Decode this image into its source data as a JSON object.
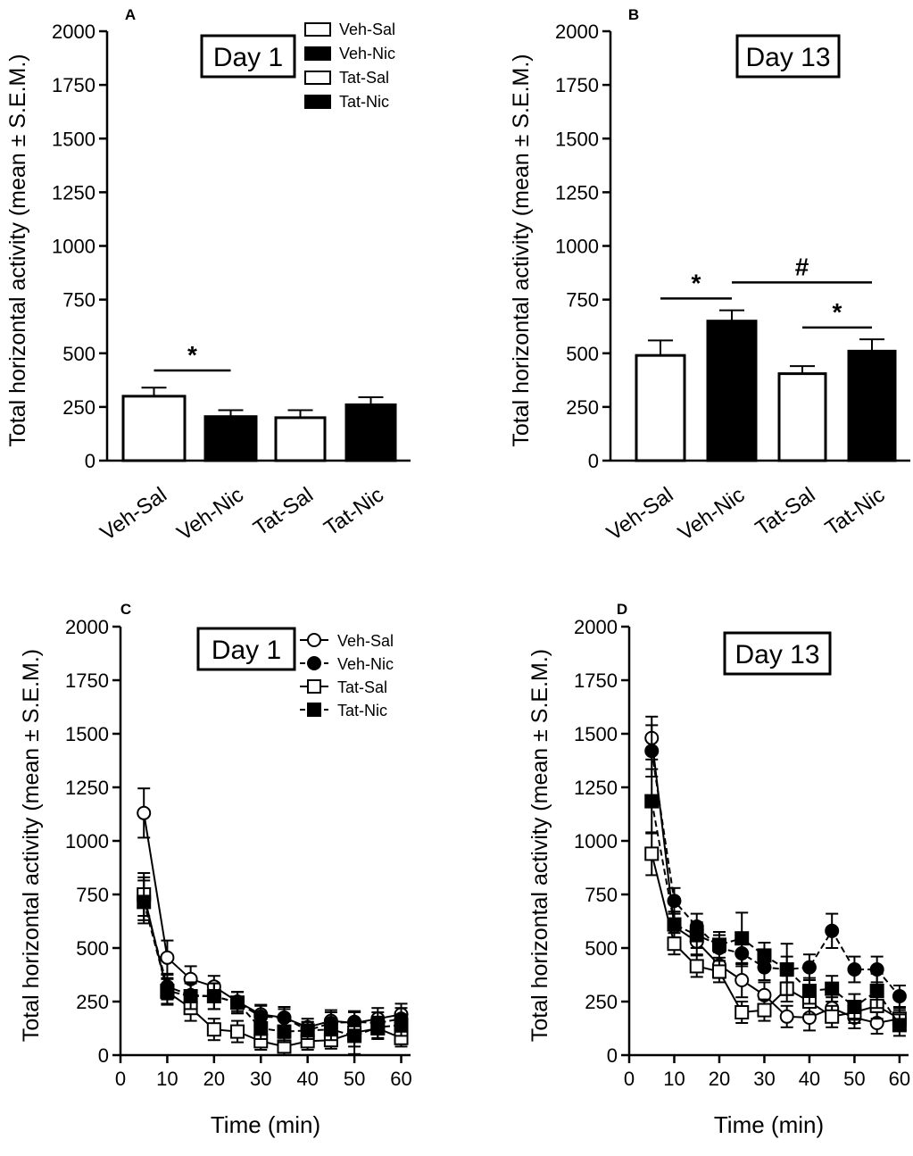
{
  "chart_data": [
    {
      "panel": "A",
      "type": "bar",
      "day_label": "Day 1",
      "ylabel": "Total horizontal activity (mean ± S.E.M.)",
      "ylim": [
        0,
        2000
      ],
      "yticks": [
        0,
        250,
        500,
        750,
        1000,
        1250,
        1500,
        1750,
        2000
      ],
      "categories": [
        "Veh-Sal",
        "Veh-Nic",
        "Tat-Sal",
        "Tat-Nic"
      ],
      "values": [
        300,
        205,
        200,
        260
      ],
      "errors": [
        40,
        30,
        35,
        35
      ],
      "fills": [
        "#ffffff",
        "#000000",
        "#ffffff",
        "#000000"
      ],
      "legend": [
        {
          "label": "Veh-Sal",
          "fill": "#ffffff"
        },
        {
          "label": "Veh-Nic",
          "fill": "#000000"
        },
        {
          "label": "Tat-Sal",
          "fill": "#ffffff"
        },
        {
          "label": "Tat-Nic",
          "fill": "#000000"
        }
      ],
      "significance": [
        {
          "symbol": "*",
          "from": "Veh-Sal",
          "to": "Veh-Nic",
          "level": 420
        }
      ]
    },
    {
      "panel": "B",
      "type": "bar",
      "day_label": "Day 13",
      "ylabel": "Total horizontal activity (mean ± S.E.M.)",
      "ylim": [
        0,
        2000
      ],
      "yticks": [
        0,
        250,
        500,
        750,
        1000,
        1250,
        1500,
        1750,
        2000
      ],
      "categories": [
        "Veh-Sal",
        "Veh-Nic",
        "Tat-Sal",
        "Tat-Nic"
      ],
      "values": [
        490,
        650,
        405,
        510
      ],
      "errors": [
        70,
        50,
        35,
        55
      ],
      "fills": [
        "#ffffff",
        "#000000",
        "#ffffff",
        "#000000"
      ],
      "significance": [
        {
          "symbol": "*",
          "from": "Veh-Sal",
          "to": "Veh-Nic",
          "level": 755
        },
        {
          "symbol": "#",
          "from": "Veh-Nic",
          "to": "Tat-Nic",
          "level": 830
        },
        {
          "symbol": "*",
          "from": "Tat-Sal",
          "to": "Tat-Nic",
          "level": 620
        }
      ]
    },
    {
      "panel": "C",
      "type": "line",
      "day_label": "Day 1",
      "xlabel": "Time (min)",
      "ylabel": "Total horizontal activity (mean ± S.E.M.)",
      "xlim": [
        0,
        62
      ],
      "ylim": [
        0,
        2000
      ],
      "xticks": [
        0,
        10,
        20,
        30,
        40,
        50,
        60
      ],
      "yticks": [
        0,
        250,
        500,
        750,
        1000,
        1250,
        1500,
        1750,
        2000
      ],
      "x": [
        5,
        10,
        15,
        20,
        25,
        30,
        35,
        40,
        45,
        50,
        55,
        60
      ],
      "series": [
        {
          "name": "Veh-Sal",
          "marker": "circle",
          "fill": "#ffffff",
          "dash": "solid",
          "values": [
            1130,
            455,
            355,
            320,
            250,
            190,
            175,
            130,
            160,
            150,
            170,
            190
          ],
          "errors": [
            115,
            80,
            60,
            50,
            45,
            45,
            40,
            40,
            50,
            50,
            50,
            50
          ]
        },
        {
          "name": "Veh-Nic",
          "marker": "circle",
          "fill": "#000000",
          "dash": "dashed",
          "values": [
            730,
            320,
            280,
            275,
            245,
            180,
            175,
            115,
            150,
            155,
            150,
            170
          ],
          "errors": [
            100,
            60,
            60,
            60,
            50,
            50,
            50,
            40,
            50,
            50,
            50,
            50
          ]
        },
        {
          "name": "Tat-Sal",
          "marker": "square",
          "fill": "#ffffff",
          "dash": "solid",
          "values": [
            750,
            295,
            220,
            120,
            110,
            65,
            40,
            65,
            70,
            105,
            125,
            80
          ],
          "errors": [
            100,
            60,
            60,
            50,
            50,
            40,
            40,
            40,
            40,
            100,
            50,
            40
          ]
        },
        {
          "name": "Tat-Nic",
          "marker": "square",
          "fill": "#000000",
          "dash": "dashed",
          "values": [
            715,
            300,
            275,
            275,
            245,
            125,
            110,
            115,
            120,
            90,
            130,
            140
          ],
          "errors": [
            100,
            60,
            60,
            60,
            50,
            50,
            50,
            40,
            50,
            50,
            50,
            50
          ]
        }
      ]
    },
    {
      "panel": "D",
      "type": "line",
      "day_label": "Day 13",
      "xlabel": "Time (min)",
      "ylabel": "Total horizontal activity (mean ± S.E.M.)",
      "xlim": [
        0,
        62
      ],
      "ylim": [
        0,
        2000
      ],
      "xticks": [
        0,
        10,
        20,
        30,
        40,
        50,
        60
      ],
      "yticks": [
        0,
        250,
        500,
        750,
        1000,
        1250,
        1500,
        1750,
        2000
      ],
      "x": [
        5,
        10,
        15,
        20,
        25,
        30,
        35,
        40,
        45,
        50,
        55,
        60
      ],
      "series": [
        {
          "name": "Veh-Sal",
          "marker": "circle",
          "fill": "#ffffff",
          "dash": "solid",
          "values": [
            1480,
            600,
            530,
            420,
            350,
            280,
            180,
            175,
            220,
            175,
            150,
            170
          ],
          "errors": [
            100,
            60,
            60,
            60,
            80,
            60,
            50,
            60,
            50,
            50,
            50,
            40
          ]
        },
        {
          "name": "Veh-Nic",
          "marker": "circle",
          "fill": "#000000",
          "dash": "dashed",
          "values": [
            1420,
            720,
            600,
            500,
            475,
            410,
            400,
            410,
            580,
            400,
            400,
            275
          ],
          "errors": [
            120,
            60,
            60,
            60,
            60,
            60,
            60,
            60,
            80,
            60,
            60,
            50
          ]
        },
        {
          "name": "Tat-Sal",
          "marker": "square",
          "fill": "#ffffff",
          "dash": "solid",
          "values": [
            940,
            520,
            415,
            390,
            200,
            210,
            310,
            250,
            180,
            200,
            230,
            170
          ],
          "errors": [
            100,
            50,
            50,
            50,
            50,
            50,
            60,
            60,
            50,
            50,
            60,
            50
          ]
        },
        {
          "name": "Tat-Nic",
          "marker": "square",
          "fill": "#000000",
          "dash": "dashed",
          "values": [
            1185,
            610,
            560,
            515,
            545,
            465,
            400,
            300,
            310,
            225,
            300,
            140
          ],
          "errors": [
            150,
            60,
            60,
            60,
            120,
            60,
            120,
            60,
            60,
            60,
            80,
            50
          ]
        }
      ]
    }
  ]
}
